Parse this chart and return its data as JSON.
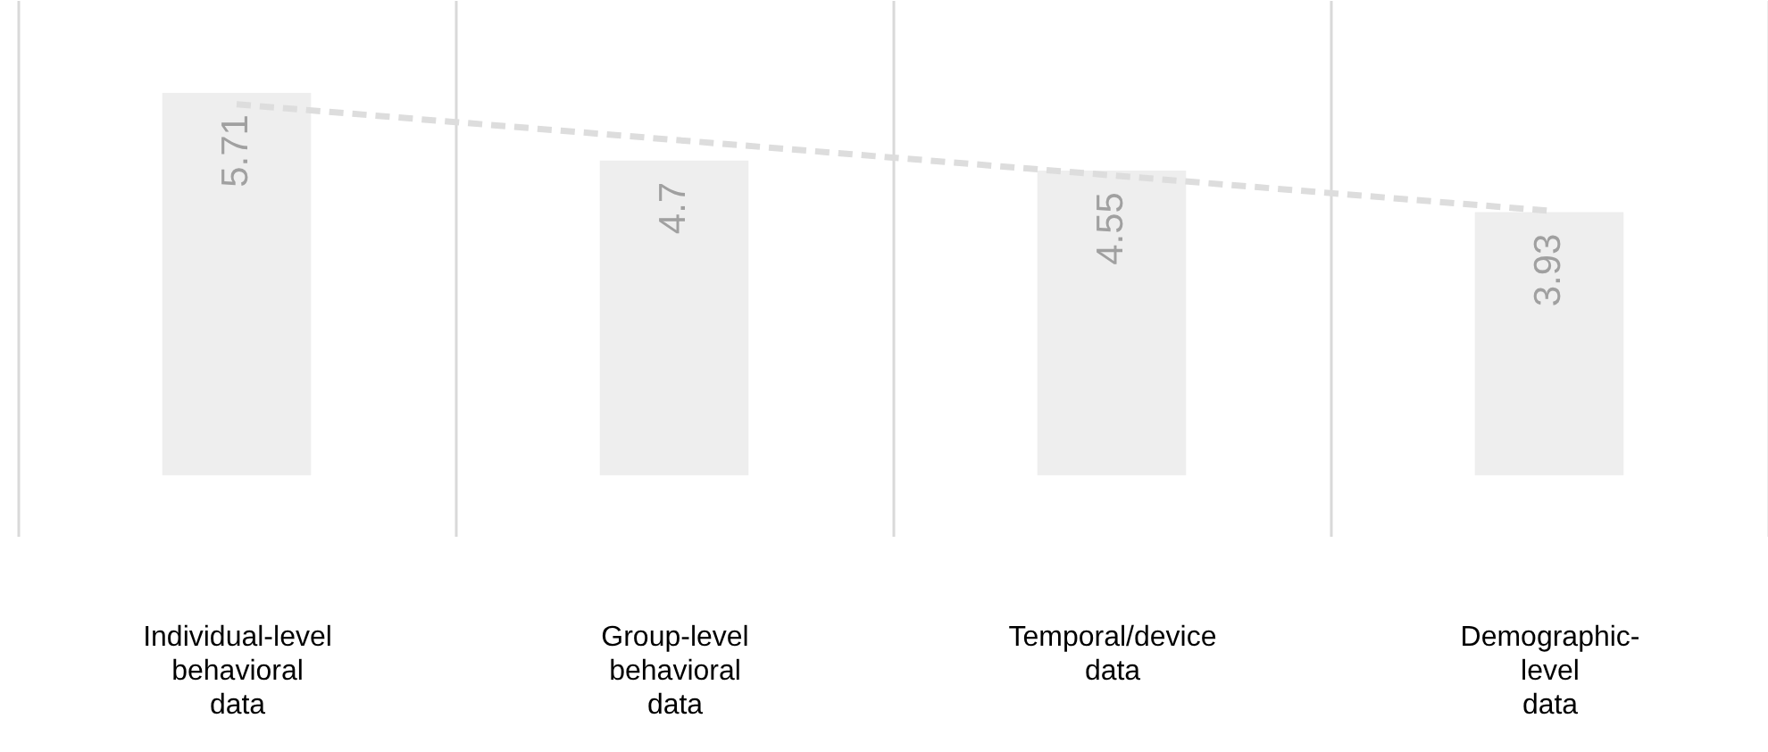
{
  "chart_data": {
    "type": "bar",
    "categories": [
      "Individual-level\nbehavioral\ndata",
      "Group-level\nbehavioral\ndata",
      "Temporal/device\ndata",
      "Demographic-\nlevel\ndata"
    ],
    "series": [
      {
        "values": [
          5.71,
          4.7,
          4.55,
          3.93
        ],
        "value_labels": [
          "5.71",
          "4.7",
          "4.55",
          "3.93"
        ],
        "color": "#eeeeee"
      },
      {
        "type": "line",
        "x": [
          "Individual-level\nbehavioral\ndata",
          "Demographic-\nlevel\ndata"
        ],
        "values": [
          5.54,
          3.95
        ],
        "color": "#dddddd",
        "line_style": "dashed"
      }
    ],
    "grid": "x"
  }
}
